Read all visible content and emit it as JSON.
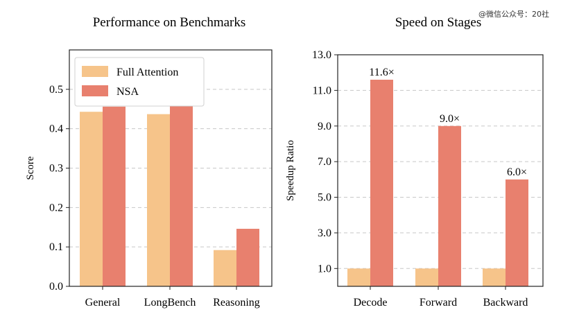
{
  "watermark": "@微信公众号：20社",
  "colors": {
    "full_attention": "#F6C48A",
    "nsa": "#E8806E",
    "grid": "#c8c8c8"
  },
  "chart_data": [
    {
      "type": "bar",
      "title": "Performance on Benchmarks",
      "xlabel": "",
      "ylabel": "Score",
      "categories": [
        "General",
        "LongBench",
        "Reasoning"
      ],
      "series": [
        {
          "name": "Full Attention",
          "values": [
            0.443,
            0.437,
            0.092
          ]
        },
        {
          "name": "NSA",
          "values": [
            0.456,
            0.469,
            0.146
          ]
        }
      ],
      "yticks": [
        "0.0",
        "0.1",
        "0.2",
        "0.3",
        "0.4",
        "0.5"
      ],
      "ylim": [
        0,
        0.6
      ],
      "grid": true,
      "legend": "top-left"
    },
    {
      "type": "bar",
      "title": "Speed on Stages",
      "xlabel": "",
      "ylabel": "Speedup Ratio",
      "categories": [
        "Decode",
        "Forward",
        "Backward"
      ],
      "series": [
        {
          "name": "Full Attention",
          "values": [
            1.0,
            1.0,
            1.0
          ]
        },
        {
          "name": "NSA",
          "values": [
            11.6,
            9.0,
            6.0
          ]
        }
      ],
      "data_labels": [
        "11.6×",
        "9.0×",
        "6.0×"
      ],
      "yticks": [
        "1.0",
        "3.0",
        "5.0",
        "7.0",
        "9.0",
        "11.0",
        "13.0"
      ],
      "ylim": [
        0,
        13
      ],
      "grid": true,
      "legend": "none"
    }
  ]
}
